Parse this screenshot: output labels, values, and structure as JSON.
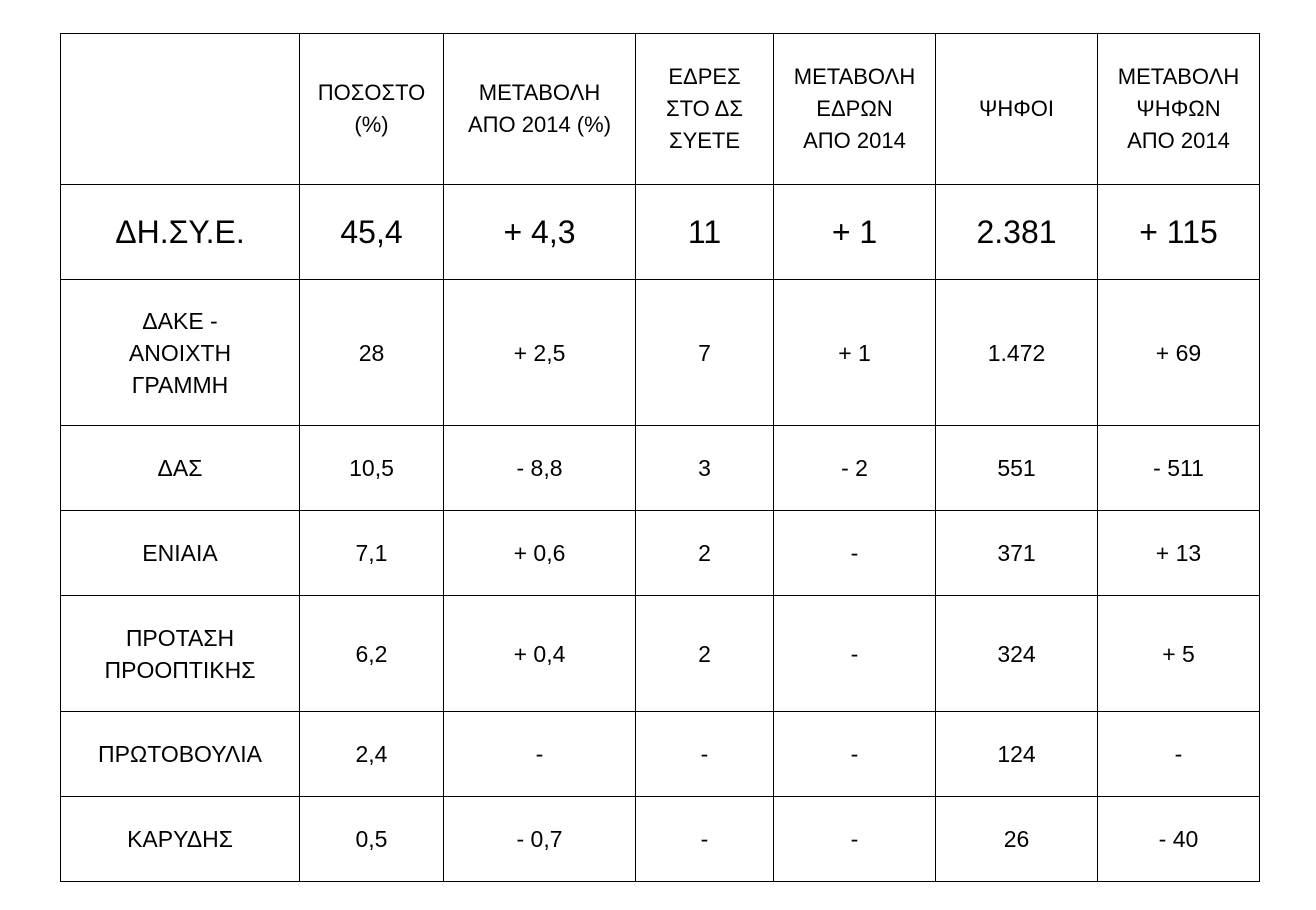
{
  "table": {
    "headers": [
      "",
      "ΠΟΣΟΣΤΟ\n(%)",
      "ΜΕΤΑΒΟΛΗ\nΑΠΟ 2014 (%)",
      "ΕΔΡΕΣ\nΣΤΟ ΔΣ\nΣΥΕΤΕ",
      "ΜΕΤΑΒΟΛΗ\nΕΔΡΩΝ\nΑΠΟ 2014",
      "ΨΗΦΟΙ",
      "ΜΕΤΑΒΟΛΗ\nΨΗΦΩΝ\nΑΠΟ 2014"
    ],
    "total": [
      "ΔΗ.ΣΥ.Ε.",
      "45,4",
      "+ 4,3",
      "11",
      "+ 1",
      "2.381",
      "+ 115"
    ],
    "rows": [
      [
        "ΔΑΚΕ -\nΑΝΟΙΧΤΗ\nΓΡΑΜΜΗ",
        "28",
        "+ 2,5",
        "7",
        "+ 1",
        "1.472",
        "+ 69"
      ],
      [
        "ΔΑΣ",
        "10,5",
        "- 8,8",
        "3",
        "- 2",
        "551",
        "- 511"
      ],
      [
        "ΕΝΙΑΙΑ",
        "7,1",
        "+ 0,6",
        "2",
        "-",
        "371",
        "+ 13"
      ],
      [
        "ΠΡΟΤΑΣΗ\nΠΡΟΟΠΤΙΚΗΣ",
        "6,2",
        "+ 0,4",
        "2",
        "-",
        "324",
        "+ 5"
      ],
      [
        "ΠΡΩΤΟΒΟΥΛΙΑ",
        "2,4",
        "-",
        "-",
        "-",
        "124",
        "-"
      ],
      [
        "ΚΑΡΥΔΗΣ",
        "0,5",
        "- 0,7",
        "-",
        "-",
        "26",
        "- 40"
      ]
    ]
  }
}
